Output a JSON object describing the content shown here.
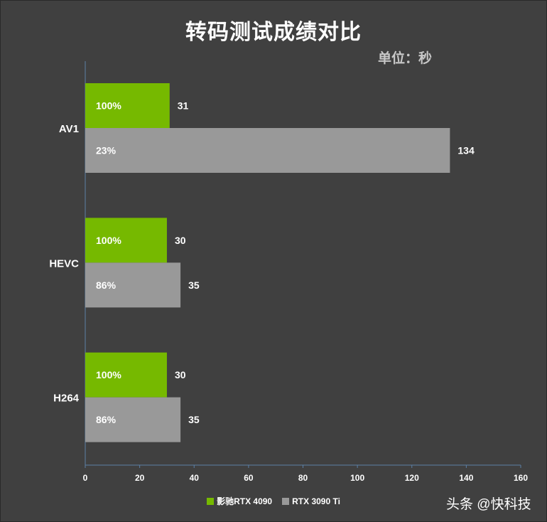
{
  "chart_data": {
    "type": "bar",
    "orientation": "horizontal",
    "title": "转码测试成绩对比",
    "unit_label": "单位：秒",
    "categories": [
      "AV1",
      "HEVC",
      "H264"
    ],
    "series": [
      {
        "name": "影驰RTX 4090",
        "color": "#76b900",
        "values": [
          31,
          30,
          30
        ],
        "percent_labels": [
          "100%",
          "100%",
          "100%"
        ]
      },
      {
        "name": "RTX 3090 Ti",
        "color": "#999999",
        "values": [
          134,
          35,
          35
        ],
        "percent_labels": [
          "23%",
          "86%",
          "86%"
        ]
      }
    ],
    "xlim": [
      0,
      160
    ],
    "xticks": [
      0,
      20,
      40,
      60,
      80,
      100,
      120,
      140,
      160
    ],
    "grid": false,
    "legend_position": "bottom"
  },
  "watermark": "头条 @快科技"
}
